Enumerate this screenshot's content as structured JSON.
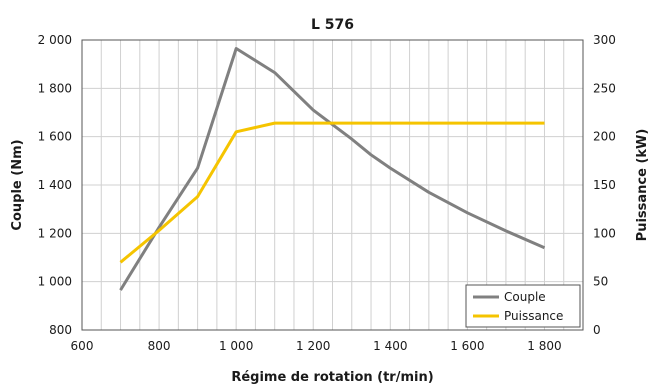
{
  "chart_data": {
    "type": "line",
    "title": "L 576",
    "xlabel": "Régime de rotation (tr/min)",
    "ylabel_left": "Couple (Nm)",
    "ylabel_right": "Puissance (kW)",
    "xlim": [
      600,
      1900
    ],
    "ylim_left": [
      800,
      2000
    ],
    "ylim_right": [
      0,
      300
    ],
    "x_ticks": [
      600,
      800,
      1000,
      1200,
      1400,
      1600,
      1800
    ],
    "x_tick_labels": [
      "600",
      "800",
      "1 000",
      "1 200",
      "1 400",
      "1 600",
      "1 800"
    ],
    "y_left_ticks": [
      800,
      1000,
      1200,
      1400,
      1600,
      1800,
      2000
    ],
    "y_left_tick_labels": [
      "800",
      "1 000",
      "1 200",
      "1 400",
      "1 600",
      "1 800",
      "2 000"
    ],
    "y_right_ticks": [
      0,
      50,
      100,
      150,
      200,
      250,
      300
    ],
    "y_right_tick_labels": [
      "0",
      "50",
      "100",
      "150",
      "200",
      "250",
      "300"
    ],
    "grid": true,
    "legend_position": "bottom-right",
    "series": [
      {
        "name": "Couple",
        "axis": "left",
        "color": "#808080",
        "x": [
          700,
          800,
          900,
          1000,
          1100,
          1200,
          1300,
          1350,
          1400,
          1500,
          1600,
          1700,
          1800
        ],
        "y": [
          965,
          1225,
          1470,
          1965,
          1865,
          1710,
          1590,
          1525,
          1470,
          1370,
          1285,
          1210,
          1140
        ]
      },
      {
        "name": "Puissance",
        "axis": "right",
        "color": "#f5c400",
        "x": [
          700,
          800,
          900,
          1000,
          1100,
          1200,
          1300,
          1400,
          1500,
          1600,
          1700,
          1800
        ],
        "y": [
          70,
          103,
          138,
          205,
          214,
          214,
          214,
          214,
          214,
          214,
          214,
          214
        ]
      }
    ]
  }
}
